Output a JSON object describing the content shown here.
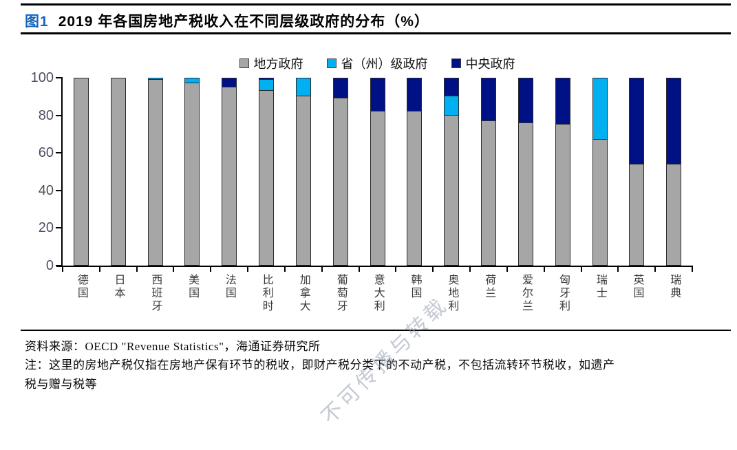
{
  "title": {
    "tag": "图1",
    "text": "2019 年各国房地产税收入在不同层级政府的分布（%）"
  },
  "legend": [
    {
      "label": "地方政府",
      "color": "#A6A6A6"
    },
    {
      "label": "省（州）级政府",
      "color": "#00B0F0"
    },
    {
      "label": "中央政府",
      "color": "#001185"
    }
  ],
  "chart_data": {
    "type": "bar",
    "stacked": true,
    "title": "2019 年各国房地产税收入在不同层级政府的分布（%）",
    "xlabel": "",
    "ylabel": "",
    "ylim": [
      0,
      100
    ],
    "yticks": [
      0,
      20,
      40,
      60,
      80,
      100
    ],
    "grid": false,
    "legend_position": "top",
    "categories": [
      "德国",
      "日本",
      "西班牙",
      "美国",
      "法国",
      "比利时",
      "加拿大",
      "葡萄牙",
      "意大利",
      "韩国",
      "奥地利",
      "荷兰",
      "爱尔兰",
      "匈牙利",
      "瑞士",
      "英国",
      "瑞典"
    ],
    "series": [
      {
        "name": "地方政府",
        "key": "local",
        "color": "#A6A6A6",
        "values": [
          100,
          100,
          99,
          97,
          95,
          93,
          90,
          89,
          82,
          82,
          80,
          77,
          76,
          75,
          67,
          54,
          54
        ]
      },
      {
        "name": "省（州）级政府",
        "key": "state",
        "color": "#00B0F0",
        "values": [
          0,
          0,
          1,
          3,
          0,
          6,
          10,
          0,
          0,
          0,
          10,
          0,
          0,
          0,
          33,
          0,
          0
        ]
      },
      {
        "name": "中央政府",
        "key": "central",
        "color": "#001185",
        "values": [
          0,
          0,
          0,
          0,
          5,
          1,
          0,
          11,
          18,
          18,
          10,
          23,
          24,
          25,
          0,
          46,
          46
        ]
      }
    ]
  },
  "footer": {
    "source": "资料来源：OECD \"Revenue Statistics\"，海通证券研究所",
    "note_lines": [
      "注：这里的房地产税仅指在房地产保有环节的税收，即财产税分类下的不动产税，不包括流转环节税收，如遗产",
      "税与赠与税等"
    ]
  },
  "watermark": "不可传播与转载"
}
